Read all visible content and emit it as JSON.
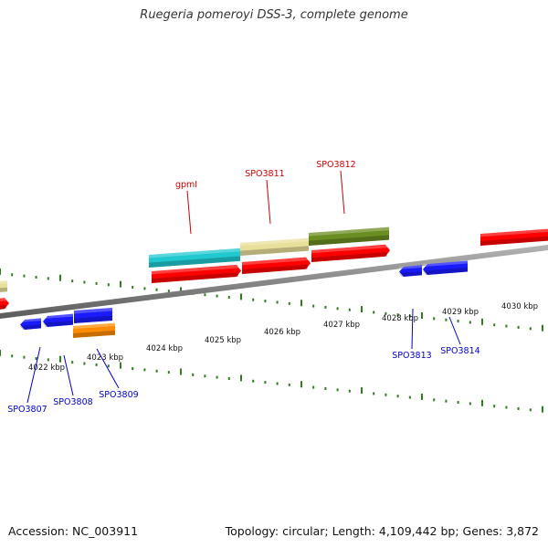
{
  "title": "Ruegeria pomeroyi DSS-3, complete genome",
  "footer": {
    "accession": "Accession: NC_003911",
    "summary": "Topology: circular; Length: 4,109,442 bp; Genes: 3,872"
  },
  "scale": {
    "labels": [
      "4022 kbp",
      "4023 kbp",
      "4024 kbp",
      "4025 kbp",
      "4026 kbp",
      "4027 kbp",
      "4028 kbp",
      "4029 kbp",
      "4030 kbp"
    ]
  },
  "features": {
    "top": [
      {
        "name": "gpmI",
        "color": "#cc0000"
      },
      {
        "name": "SPO3811",
        "color": "#cc0000"
      },
      {
        "name": "SPO3812",
        "color": "#cc0000"
      }
    ],
    "bottom": [
      {
        "name": "SPO3807",
        "color": "#0000cc"
      },
      {
        "name": "SPO3808",
        "color": "#0000cc"
      },
      {
        "name": "SPO3809",
        "color": "#0000cc"
      },
      {
        "name": "SPO3813",
        "color": "#0000cc"
      },
      {
        "name": "SPO3814",
        "color": "#0000cc"
      }
    ]
  },
  "colors": {
    "forward_cds": "#ff0000",
    "reverse_cds": "#1a1aff",
    "orf_teal": "#20c8d0",
    "orf_khaki": "#e8df9a",
    "orf_olive": "#6b8e23",
    "orf_orange": "#ff8c00",
    "backbone": "#888888",
    "ticks": "#2e7d1e"
  }
}
